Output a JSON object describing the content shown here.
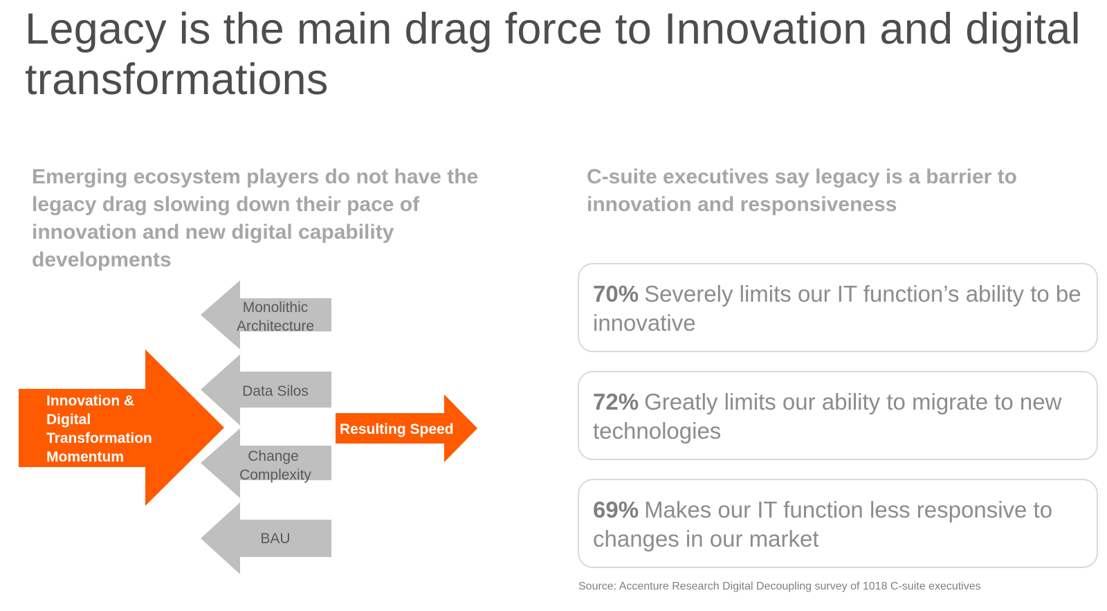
{
  "title": "Legacy is the main drag force to Innovation and digital transformations",
  "left": {
    "heading": "Emerging ecosystem players do not have the legacy drag slowing down their pace of innovation and new digital capability developments",
    "momentum_lines": [
      "Innovation &",
      "Digital",
      "Transformation",
      "Momentum"
    ],
    "drag_forces": [
      {
        "lines": [
          "Monolithic",
          "Architecture"
        ]
      },
      {
        "lines": [
          "Data Silos"
        ]
      },
      {
        "lines": [
          "Change",
          "Complexity"
        ]
      },
      {
        "lines": [
          "BAU"
        ]
      }
    ],
    "result_label": "Resulting Speed"
  },
  "right": {
    "heading": "C-suite executives say legacy is a barrier to innovation and responsiveness",
    "stats": [
      {
        "pct": "70%",
        "text": "Severely limits our IT function’s ability to be innovative"
      },
      {
        "pct": "72%",
        "text": "Greatly limits our ability to migrate to new technologies"
      },
      {
        "pct": "69%",
        "text": "Makes our IT function less responsive to changes in our market"
      }
    ],
    "source": "Source: Accenture Research Digital Decoupling survey of 1018 C-suite executives"
  },
  "colors": {
    "orange": "#ff5a00",
    "gray_arrow": "#bfbfbf",
    "card_border": "#d9d9d9"
  }
}
